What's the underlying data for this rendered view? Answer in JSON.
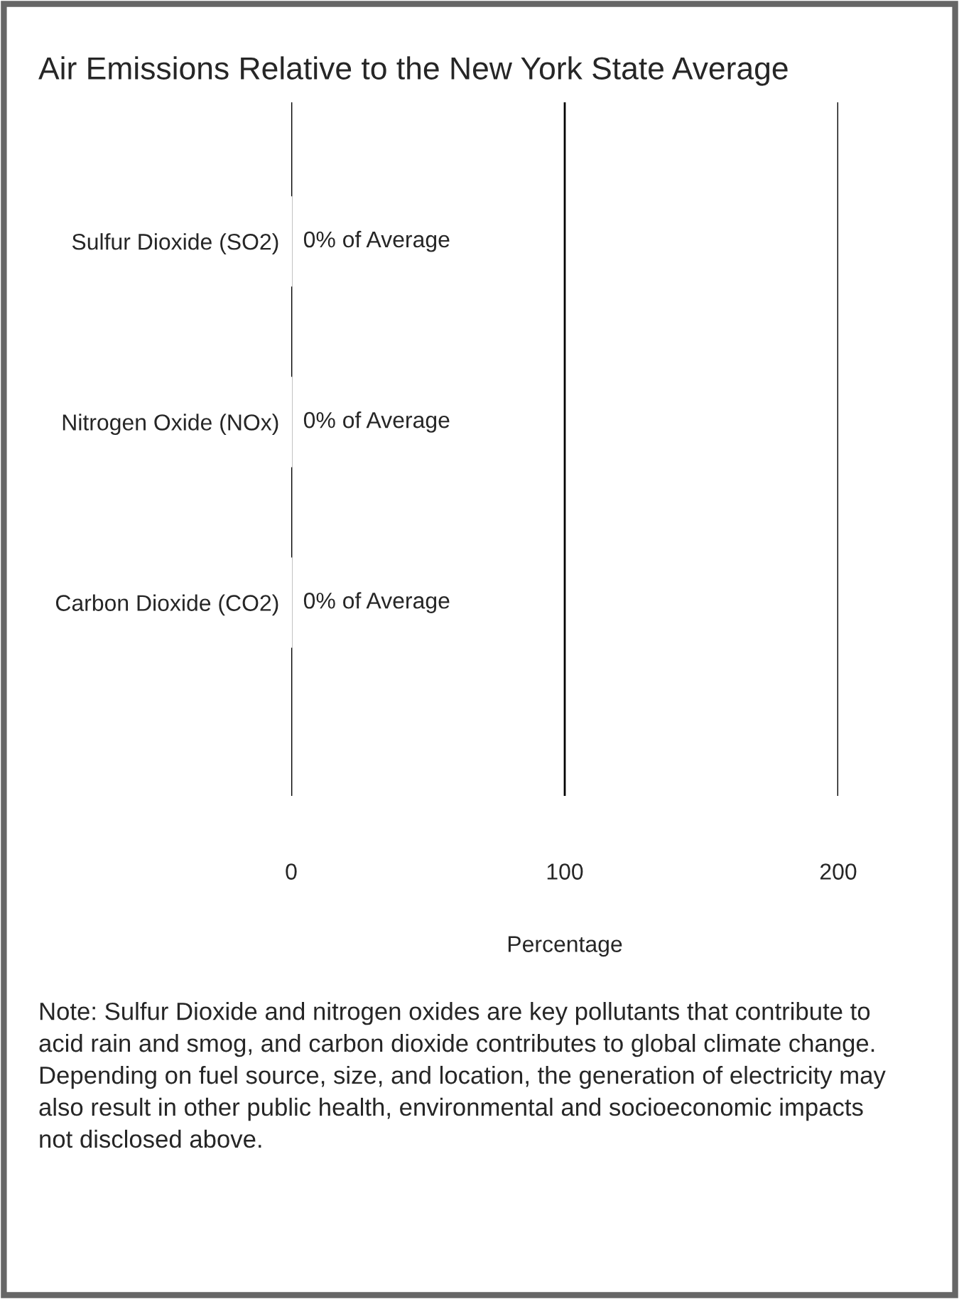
{
  "chart_data": {
    "type": "bar",
    "orientation": "horizontal",
    "title": "Air Emissions Relative to the New York State Average",
    "categories": [
      "Sulfur Dioxide (SO2)",
      "Nitrogen Oxide (NOx)",
      "Carbon Dioxide (CO2)"
    ],
    "values": [
      0,
      0,
      0
    ],
    "value_labels": [
      "0% of Average",
      "0% of Average",
      "0% of Average"
    ],
    "xlabel": "Percentage",
    "xlim": [
      0,
      200
    ],
    "xticks": [
      0,
      100,
      200
    ],
    "grid": "x",
    "annotations": [
      "Note: Sulfur Dioxide and nitrogen oxides are key pollutants that contribute to acid rain and smog, and carbon dioxide contributes to global climate change.  Depending on fuel source, size, and location, the generation of electricity may also result in other public health, environmental and socioeconomic impacts not disclosed above."
    ]
  }
}
